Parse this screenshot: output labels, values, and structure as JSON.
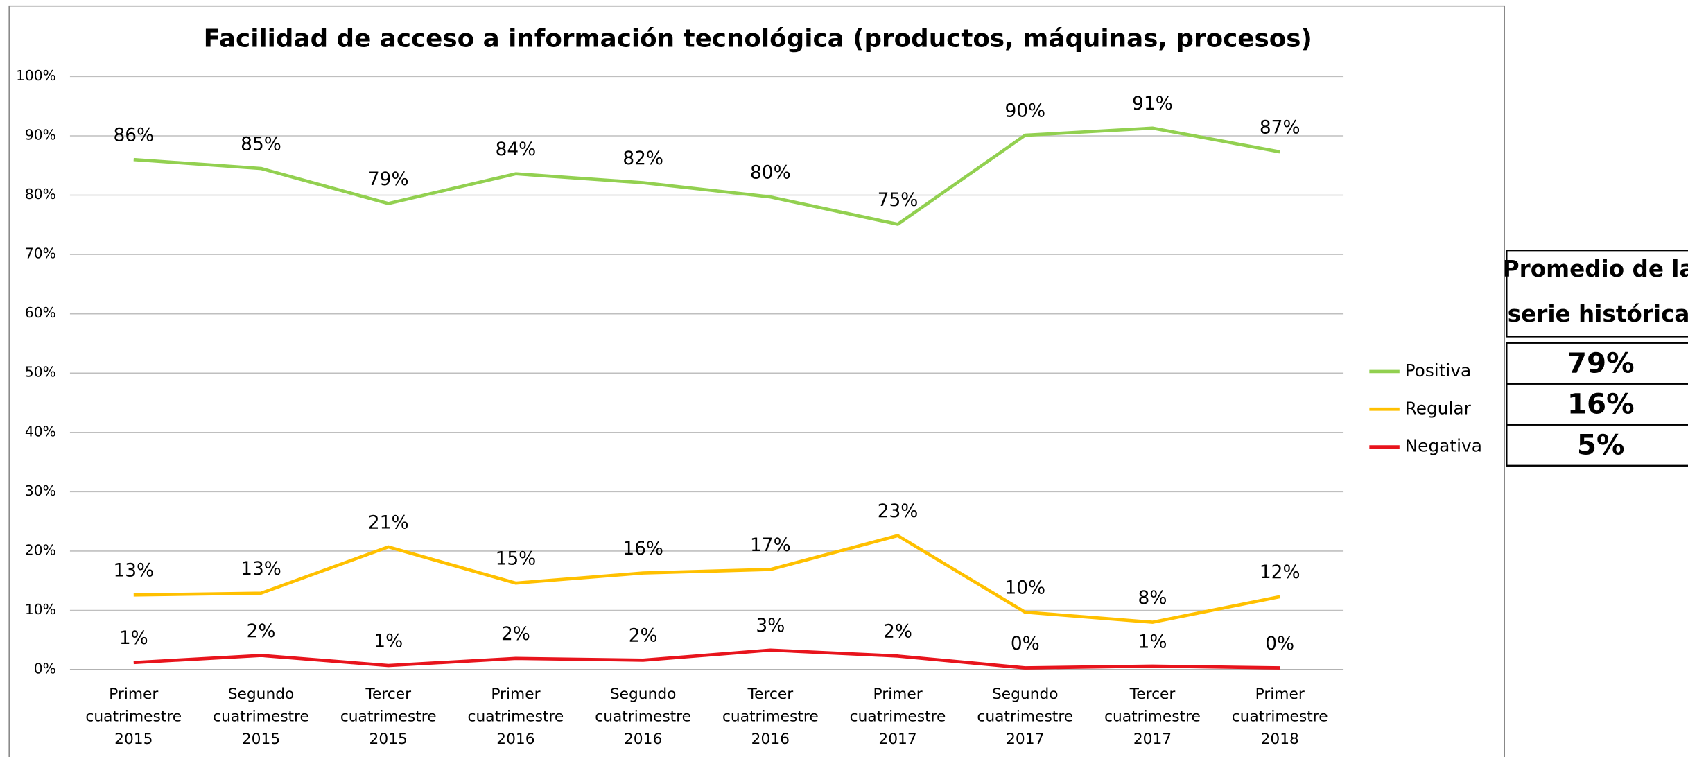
{
  "chart_data": {
    "type": "line",
    "title": "Facilidad de acceso a información tecnológica (productos, máquinas, procesos)",
    "categories": [
      [
        "Primer",
        "cuatrimestre",
        "2015"
      ],
      [
        "Segundo",
        "cuatrimestre",
        "2015"
      ],
      [
        "Tercer",
        "cuatrimestre",
        "2015"
      ],
      [
        "Primer",
        "cuatrimestre",
        "2016"
      ],
      [
        "Segundo",
        "cuatrimestre",
        "2016"
      ],
      [
        "Tercer",
        "cuatrimestre",
        "2016"
      ],
      [
        "Primer",
        "cuatrimestre",
        "2017"
      ],
      [
        "Segundo",
        "cuatrimestre",
        "2017"
      ],
      [
        "Tercer",
        "cuatrimestre",
        "2017"
      ],
      [
        "Primer",
        "cuatrimestre",
        "2018"
      ]
    ],
    "series": [
      {
        "name": "Positiva",
        "color": "#92d050",
        "values": [
          86,
          84.5,
          78.6,
          83.6,
          82.1,
          79.7,
          75.1,
          90.1,
          91.3,
          87.3
        ],
        "value_labels": [
          "86%",
          "85%",
          "79%",
          "84%",
          "82%",
          "80%",
          "75%",
          "90%",
          "91%",
          "87%"
        ]
      },
      {
        "name": "Regular",
        "color": "#ffc000",
        "values": [
          12.6,
          12.9,
          20.7,
          14.6,
          16.3,
          16.9,
          22.6,
          9.7,
          8.0,
          12.3
        ],
        "value_labels": [
          "13%",
          "13%",
          "21%",
          "15%",
          "16%",
          "17%",
          "23%",
          "10%",
          "8%",
          "12%"
        ]
      },
      {
        "name": "Negativa",
        "color": "#e8141c",
        "values": [
          1.2,
          2.4,
          0.7,
          1.9,
          1.6,
          3.3,
          2.3,
          0.3,
          0.6,
          0.3
        ],
        "value_labels": [
          "1%",
          "2%",
          "1%",
          "2%",
          "2%",
          "3%",
          "2%",
          "0%",
          "1%",
          "0%"
        ]
      }
    ],
    "ylim": [
      0,
      100
    ],
    "yticks": [
      {
        "value": 0,
        "label": "0%"
      },
      {
        "value": 10,
        "label": "10%"
      },
      {
        "value": 20,
        "label": "20%"
      },
      {
        "value": 30,
        "label": "30%"
      },
      {
        "value": 40,
        "label": "40%"
      },
      {
        "value": 50,
        "label": "50%"
      },
      {
        "value": 60,
        "label": "60%"
      },
      {
        "value": 70,
        "label": "70%"
      },
      {
        "value": 80,
        "label": "80%"
      },
      {
        "value": 90,
        "label": "90%"
      },
      {
        "value": 100,
        "label": "100%"
      }
    ],
    "grid": true,
    "legend": "right",
    "summary": {
      "title": [
        "Promedio de la",
        "serie histórica"
      ],
      "values": [
        "79%",
        "16%",
        "5%"
      ]
    }
  }
}
